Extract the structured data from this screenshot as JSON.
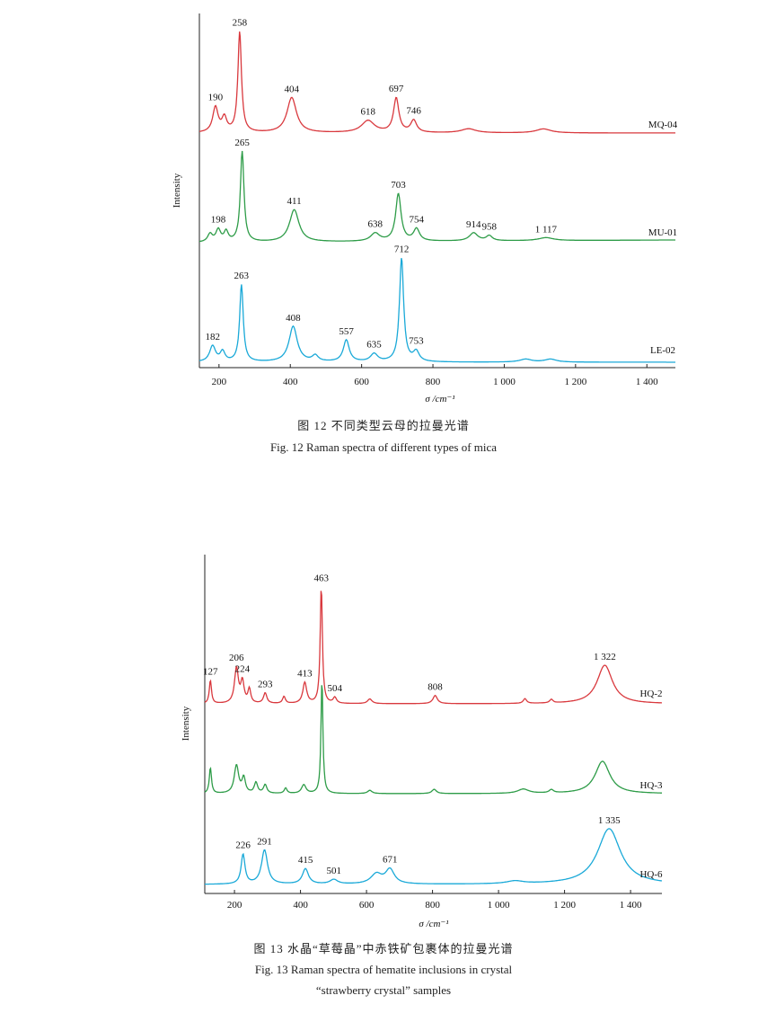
{
  "figures": [
    {
      "caption_cn": "图 12   不同类型云母的拉曼光谱",
      "caption_en": "Fig. 12   Raman spectra of different types of mica"
    },
    {
      "caption_cn": "图 13   水晶“草莓晶”中赤铁矿包裹体的拉曼光谱",
      "caption_en_line1": "Fig. 13   Raman spectra of hematite inclusions in crystal",
      "caption_en_line2": "“strawberry crystal” samples"
    }
  ],
  "chart_data": [
    {
      "type": "line",
      "title": "",
      "xlabel": "σ /cm⁻¹",
      "ylabel": "Intensity",
      "xlim": [
        145,
        1480
      ],
      "xticks": [
        {
          "value": 200,
          "label": "200"
        },
        {
          "value": 400,
          "label": "400"
        },
        {
          "value": 600,
          "label": "600"
        },
        {
          "value": 800,
          "label": "800"
        },
        {
          "value": 1000,
          "label": "1 000"
        },
        {
          "value": 1200,
          "label": "1 200"
        },
        {
          "value": 1400,
          "label": "1 400"
        }
      ],
      "colors": {
        "MQ-04": "#d9393e",
        "MU-01": "#2e9c48",
        "LE-02": "#1aa9d8"
      },
      "series": [
        {
          "name": "MQ-04",
          "peaks": [
            {
              "x": 190,
              "label": "190",
              "h": 0.25,
              "w": 9
            },
            {
              "x": 215,
              "h": 0.14,
              "w": 8
            },
            {
              "x": 258,
              "label": "258",
              "h": 1.0,
              "w": 6
            },
            {
              "x": 404,
              "label": "404",
              "h": 0.35,
              "w": 16
            },
            {
              "x": 618,
              "label": "618",
              "h": 0.12,
              "w": 22
            },
            {
              "x": 697,
              "label": "697",
              "h": 0.34,
              "w": 9
            },
            {
              "x": 746,
              "label": "746",
              "h": 0.12,
              "w": 10
            },
            {
              "x": 900,
              "h": 0.04,
              "w": 25
            },
            {
              "x": 1110,
              "h": 0.04,
              "w": 25
            }
          ]
        },
        {
          "name": "MU-01",
          "peaks": [
            {
              "x": 175,
              "h": 0.08,
              "w": 8
            },
            {
              "x": 198,
              "label": "198",
              "h": 0.12,
              "w": 8
            },
            {
              "x": 220,
              "h": 0.1,
              "w": 7
            },
            {
              "x": 265,
              "label": "265",
              "h": 0.9,
              "w": 6
            },
            {
              "x": 411,
              "label": "411",
              "h": 0.32,
              "w": 16
            },
            {
              "x": 638,
              "label": "638",
              "h": 0.08,
              "w": 15
            },
            {
              "x": 703,
              "label": "703",
              "h": 0.47,
              "w": 9
            },
            {
              "x": 754,
              "label": "754",
              "h": 0.12,
              "w": 10
            },
            {
              "x": 914,
              "label": "914",
              "h": 0.08,
              "w": 14
            },
            {
              "x": 958,
              "label": "958",
              "h": 0.05,
              "w": 10
            },
            {
              "x": 1117,
              "label": "1 117",
              "h": 0.03,
              "w": 25
            }
          ]
        },
        {
          "name": "LE-02",
          "peaks": [
            {
              "x": 182,
              "label": "182",
              "h": 0.16,
              "w": 10
            },
            {
              "x": 210,
              "h": 0.1,
              "w": 8
            },
            {
              "x": 263,
              "label": "263",
              "h": 0.78,
              "w": 6
            },
            {
              "x": 408,
              "label": "408",
              "h": 0.36,
              "w": 14
            },
            {
              "x": 470,
              "h": 0.06,
              "w": 10
            },
            {
              "x": 557,
              "label": "557",
              "h": 0.22,
              "w": 10
            },
            {
              "x": 635,
              "label": "635",
              "h": 0.08,
              "w": 12
            },
            {
              "x": 712,
              "label": "712",
              "h": 1.05,
              "w": 7
            },
            {
              "x": 753,
              "label": "753",
              "h": 0.1,
              "w": 10
            },
            {
              "x": 1060,
              "h": 0.03,
              "w": 20
            },
            {
              "x": 1130,
              "h": 0.03,
              "w": 20
            }
          ]
        }
      ]
    },
    {
      "type": "line",
      "title": "",
      "xlabel": "σ /cm⁻¹",
      "ylabel": "Intensity",
      "xlim": [
        110,
        1495
      ],
      "xticks": [
        {
          "value": 200,
          "label": "200"
        },
        {
          "value": 400,
          "label": "400"
        },
        {
          "value": 600,
          "label": "600"
        },
        {
          "value": 800,
          "label": "800"
        },
        {
          "value": 1000,
          "label": "1 000"
        },
        {
          "value": 1200,
          "label": "1 200"
        },
        {
          "value": 1400,
          "label": "1 400"
        }
      ],
      "colors": {
        "HQ-2": "#d9393e",
        "HQ-3": "#2e9c48",
        "HQ-6": "#1aa9d8"
      },
      "series": [
        {
          "name": "HQ-2",
          "peaks": [
            {
              "x": 127,
              "label": "127",
              "h": 0.2,
              "w": 4
            },
            {
              "x": 206,
              "label": "206",
              "h": 0.3,
              "w": 7
            },
            {
              "x": 224,
              "label": "224",
              "h": 0.18,
              "w": 6
            },
            {
              "x": 245,
              "h": 0.12,
              "w": 5
            },
            {
              "x": 293,
              "label": "293",
              "h": 0.09,
              "w": 6
            },
            {
              "x": 350,
              "h": 0.06,
              "w": 5
            },
            {
              "x": 413,
              "label": "413",
              "h": 0.18,
              "w": 7
            },
            {
              "x": 463,
              "label": "463",
              "h": 1.0,
              "w": 4
            },
            {
              "x": 504,
              "label": "504",
              "h": 0.05,
              "w": 6
            },
            {
              "x": 610,
              "h": 0.04,
              "w": 8
            },
            {
              "x": 808,
              "label": "808",
              "h": 0.07,
              "w": 8
            },
            {
              "x": 1080,
              "h": 0.04,
              "w": 6
            },
            {
              "x": 1160,
              "h": 0.03,
              "w": 6
            },
            {
              "x": 1322,
              "label": "1 322",
              "h": 0.33,
              "w": 28
            }
          ]
        },
        {
          "name": "HQ-3",
          "peaks": [
            {
              "x": 127,
              "h": 0.24,
              "w": 4
            },
            {
              "x": 206,
              "h": 0.26,
              "w": 8
            },
            {
              "x": 228,
              "h": 0.14,
              "w": 6
            },
            {
              "x": 265,
              "h": 0.1,
              "w": 6
            },
            {
              "x": 293,
              "h": 0.08,
              "w": 6
            },
            {
              "x": 355,
              "h": 0.05,
              "w": 5
            },
            {
              "x": 410,
              "h": 0.08,
              "w": 8
            },
            {
              "x": 465,
              "h": 1.06,
              "w": 3.5
            },
            {
              "x": 610,
              "h": 0.03,
              "w": 8
            },
            {
              "x": 805,
              "h": 0.04,
              "w": 8
            },
            {
              "x": 1075,
              "h": 0.04,
              "w": 20
            },
            {
              "x": 1160,
              "h": 0.03,
              "w": 8
            },
            {
              "x": 1315,
              "h": 0.3,
              "w": 27
            }
          ]
        },
        {
          "name": "HQ-6",
          "peaks": [
            {
              "x": 226,
              "label": "226",
              "h": 0.33,
              "w": 7
            },
            {
              "x": 291,
              "label": "291",
              "h": 0.38,
              "w": 11
            },
            {
              "x": 415,
              "label": "415",
              "h": 0.17,
              "w": 11
            },
            {
              "x": 501,
              "label": "501",
              "h": 0.05,
              "w": 14
            },
            {
              "x": 630,
              "h": 0.11,
              "w": 20
            },
            {
              "x": 671,
              "label": "671",
              "h": 0.16,
              "w": 16
            },
            {
              "x": 1050,
              "h": 0.03,
              "w": 30
            },
            {
              "x": 1335,
              "label": "1 335",
              "h": 0.62,
              "w": 42
            }
          ]
        }
      ]
    }
  ]
}
